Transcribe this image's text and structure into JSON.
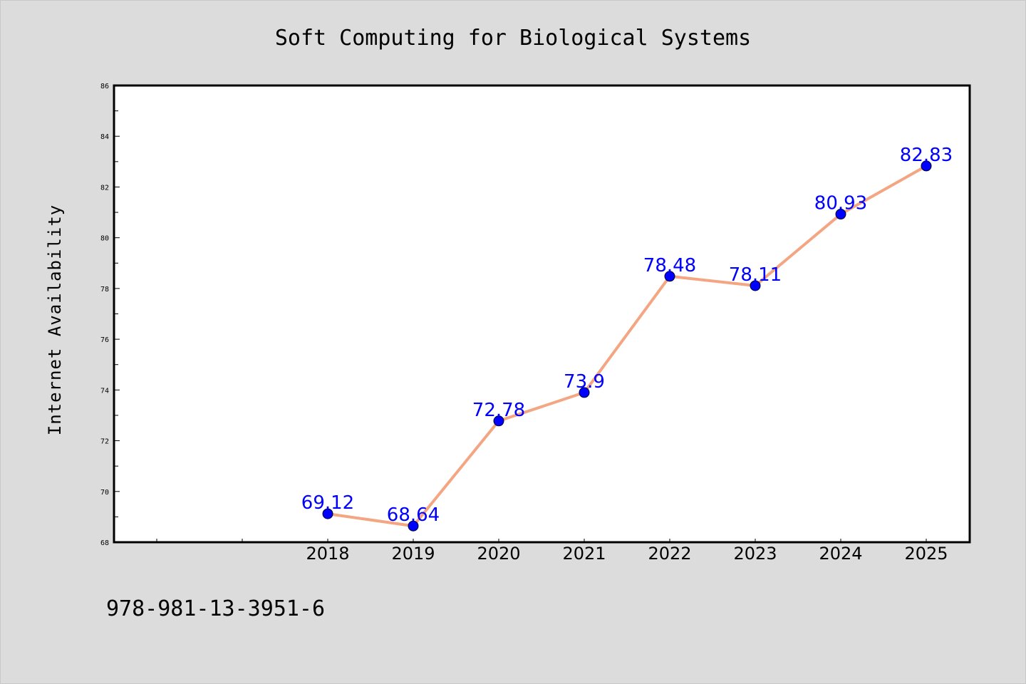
{
  "chart_data": {
    "type": "line",
    "title": "Soft Computing for Biological Systems",
    "xlabel": "",
    "ylabel": "Internet Availability",
    "categories": [
      "2018",
      "2019",
      "2020",
      "2021",
      "2022",
      "2023",
      "2024",
      "2025"
    ],
    "series": [
      {
        "values": [
          69.12,
          68.64,
          72.78,
          73.9,
          78.48,
          78.11,
          80.93,
          82.83
        ],
        "labels": [
          "69.12",
          "68.64",
          "72.78",
          "73.9",
          "78.48",
          "78.11",
          "80.93",
          "82.83"
        ]
      }
    ],
    "ylim": [
      68,
      86
    ],
    "yticks": [
      "68",
      "70",
      "72",
      "74",
      "76",
      "78",
      "80",
      "82",
      "84",
      "86"
    ],
    "grid": false,
    "legend": "none",
    "colors": {
      "line": "#f4a582",
      "marker": "#0000ff",
      "data_label": "#0000ff",
      "plot_background": "#ffffff",
      "page_background": "#dcdcdc"
    }
  },
  "footer": {
    "isbn": "978-981-13-3951-6"
  }
}
